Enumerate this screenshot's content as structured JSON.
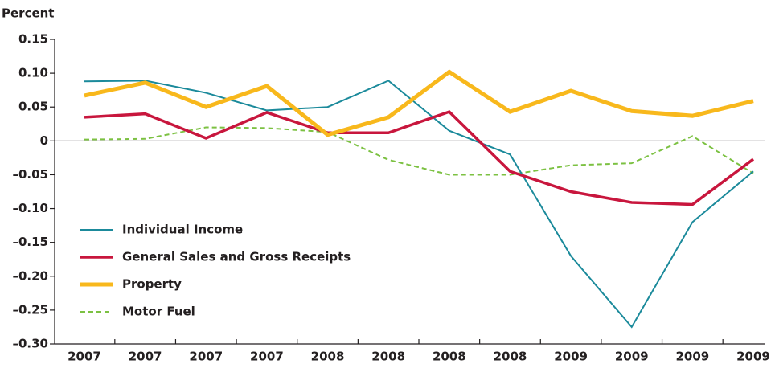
{
  "chart_data": {
    "type": "line",
    "y_label": "Percent",
    "categories": [
      "2007",
      "2007",
      "2007",
      "2007",
      "2008",
      "2008",
      "2008",
      "2008",
      "2009",
      "2009",
      "2009",
      "2009"
    ],
    "ylim": [
      -0.3,
      0.15
    ],
    "yticks": [
      0.15,
      {
        "value": 0.1,
        "label": "0.10"
      },
      0.05,
      0,
      {
        "value": -0.05,
        "label": "–0.05"
      },
      {
        "value": -0.1,
        "label": "–0.10"
      },
      {
        "value": -0.15,
        "label": "–0.15"
      },
      {
        "value": -0.2,
        "label": "–0.20"
      },
      {
        "value": -0.25,
        "label": "–0.25"
      },
      {
        "value": -0.3,
        "label": "–0.30"
      }
    ],
    "series": [
      {
        "name": "Individual Income",
        "color": "#1b8a9b",
        "values": [
          0.088,
          0.089,
          0.071,
          0.045,
          0.05,
          0.089,
          0.015,
          -0.02,
          -0.17,
          -0.275,
          -0.12,
          -0.045
        ]
      },
      {
        "name": "General Sales and Gross Receipts",
        "color": "#c8163d",
        "values": [
          0.035,
          0.04,
          0.004,
          0.042,
          0.012,
          0.012,
          0.043,
          -0.045,
          -0.075,
          -0.091,
          -0.094,
          -0.027
        ]
      },
      {
        "name": "Property",
        "color": "#f8b81c",
        "values": [
          0.067,
          0.086,
          0.05,
          0.081,
          0.009,
          0.035,
          0.102,
          0.043,
          0.074,
          0.044,
          0.037,
          0.059
        ]
      },
      {
        "name": "Motor Fuel",
        "color": "#7cc142",
        "values": [
          0.002,
          0.003,
          0.02,
          0.019,
          0.013,
          -0.028,
          -0.05,
          -0.05,
          -0.036,
          -0.033,
          0.007,
          -0.048
        ]
      }
    ]
  }
}
